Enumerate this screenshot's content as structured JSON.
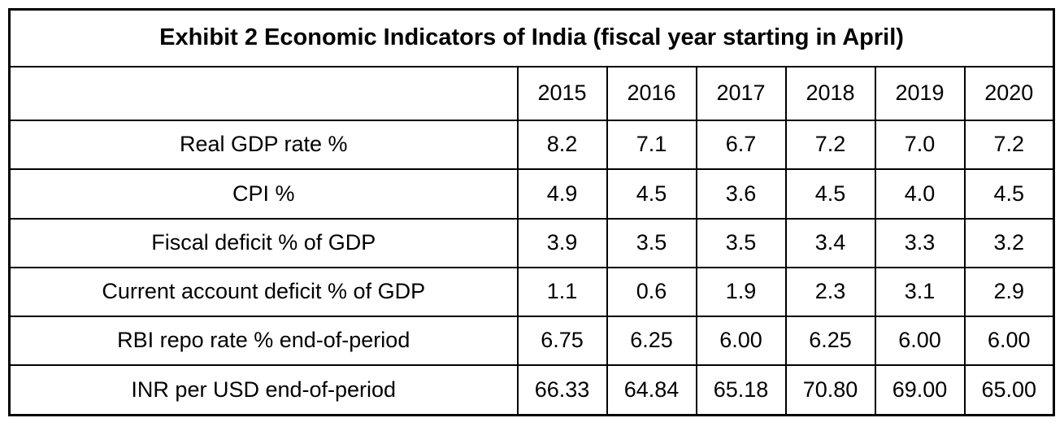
{
  "chart_data": {
    "type": "table",
    "title": "Exhibit 2 Economic Indicators of India (fiscal year starting in April)",
    "columns": [
      "2015",
      "2016",
      "2017",
      "2018",
      "2019",
      "2020"
    ],
    "rows": [
      {
        "label": "Real GDP rate %",
        "values": [
          "8.2",
          "7.1",
          "6.7",
          "7.2",
          "7.0",
          "7.2"
        ]
      },
      {
        "label": "CPI %",
        "values": [
          "4.9",
          "4.5",
          "3.6",
          "4.5",
          "4.0",
          "4.5"
        ]
      },
      {
        "label": "Fiscal deficit % of GDP",
        "values": [
          "3.9",
          "3.5",
          "3.5",
          "3.4",
          "3.3",
          "3.2"
        ]
      },
      {
        "label": "Current account deficit % of GDP",
        "values": [
          "1.1",
          "0.6",
          "1.9",
          "2.3",
          "3.1",
          "2.9"
        ]
      },
      {
        "label": "RBI repo rate % end-of-period",
        "values": [
          "6.75",
          "6.25",
          "6.00",
          "6.25",
          "6.00",
          "6.00"
        ]
      },
      {
        "label": "INR per USD end-of-period",
        "values": [
          "66.33",
          "64.84",
          "65.18",
          "70.80",
          "69.00",
          "65.00"
        ]
      }
    ],
    "layout": {
      "grid": true,
      "border_color": "#000000",
      "background_color": "#ffffff",
      "text_color": "#000000"
    }
  }
}
